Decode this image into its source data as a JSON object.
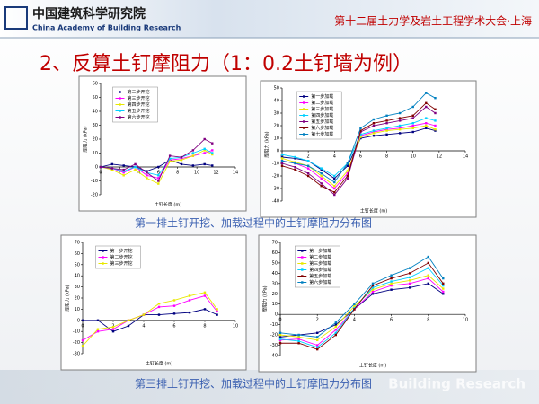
{
  "header": {
    "org_cn": "中国建筑科学研究院",
    "org_en": "China Academy of Building Research",
    "conference": "第十二届土力学及岩土工程学术大会·上海"
  },
  "title": "2、反算土钉摩阻力（1：0.2土钉墙为例）",
  "captions": [
    "第一排土钉开挖、加载过程中的土钉摩阻力分布图",
    "第三排土钉开挖、加载过程中的土钉摩阻力分布图"
  ],
  "watermark": "Building Research",
  "chart_data": [
    {
      "type": "line",
      "y_label": "摩阻力 (kPa)",
      "x_label": "土钉长度 (m)",
      "legend": "upper left",
      "x": [
        0,
        1.2,
        2.4,
        3.6,
        4.8,
        6,
        7.2,
        8.4,
        9.6,
        10.8,
        11.6
      ],
      "series": [
        {
          "name": "第二步开挖",
          "color": "#000080",
          "values": [
            0,
            2,
            1,
            0,
            -3,
            0,
            5,
            2,
            1,
            2,
            1
          ]
        },
        {
          "name": "第三步开挖",
          "color": "#ff00ff",
          "values": [
            0,
            -1,
            -4,
            0,
            -6,
            -8,
            5,
            6,
            8,
            10,
            12
          ]
        },
        {
          "name": "第四步开挖",
          "color": "#e8e800",
          "values": [
            0,
            -2,
            -6,
            -2,
            -8,
            -12,
            4,
            5,
            8,
            12,
            9
          ]
        },
        {
          "name": "第五步开挖",
          "color": "#00d0ff",
          "values": [
            0,
            -1,
            -3,
            0,
            -4,
            -6,
            6,
            7,
            10,
            13,
            10
          ]
        },
        {
          "name": "第六步开挖",
          "color": "#800080",
          "values": [
            0,
            -1,
            -2,
            2,
            -4,
            -10,
            8,
            7,
            12,
            20,
            17
          ]
        }
      ],
      "xlim": [
        0,
        14
      ],
      "xticks": [
        0,
        2,
        4,
        6,
        8,
        10,
        12,
        14
      ],
      "ylim": [
        -20,
        60
      ],
      "yticks": [
        -20,
        -10,
        0,
        10,
        20,
        30,
        40,
        50,
        60
      ]
    },
    {
      "type": "line",
      "y_label": "摩阻力 (kPa)",
      "x_label": "土钉长度 (m)",
      "legend": "upper left",
      "x": [
        0,
        1,
        2,
        3,
        4,
        5,
        6,
        7,
        8,
        9,
        10,
        11,
        11.7
      ],
      "series": [
        {
          "name": "第一步加载",
          "color": "#000080",
          "values": [
            -5,
            -6,
            -8,
            -15,
            -22,
            -12,
            10,
            12,
            13,
            14,
            15,
            18,
            16
          ]
        },
        {
          "name": "第二步加载",
          "color": "#ff00ff",
          "values": [
            -8,
            -10,
            -14,
            -22,
            -30,
            -18,
            12,
            15,
            17,
            18,
            20,
            22,
            20
          ]
        },
        {
          "name": "第三步加载",
          "color": "#e8e800",
          "values": [
            -6,
            -9,
            -12,
            -20,
            -28,
            -16,
            11,
            14,
            16,
            17,
            18,
            20,
            17
          ]
        },
        {
          "name": "第四步加载",
          "color": "#00d0ff",
          "values": [
            -3,
            -5,
            -8,
            -14,
            -20,
            -10,
            13,
            16,
            18,
            20,
            22,
            26,
            24
          ]
        },
        {
          "name": "第五步加载",
          "color": "#800080",
          "values": [
            -10,
            -13,
            -18,
            -26,
            -35,
            -22,
            15,
            20,
            22,
            24,
            26,
            35,
            30
          ]
        },
        {
          "name": "第六步加载",
          "color": "#800000",
          "values": [
            -12,
            -15,
            -20,
            -28,
            -33,
            -20,
            16,
            22,
            24,
            26,
            28,
            38,
            33
          ]
        },
        {
          "name": "第七步加载",
          "color": "#0080c0",
          "values": [
            -8,
            -10,
            -12,
            -18,
            -25,
            -10,
            18,
            25,
            28,
            30,
            35,
            46,
            42
          ]
        }
      ],
      "xlim": [
        0,
        14
      ],
      "xticks": [
        0,
        2,
        4,
        6,
        8,
        10,
        12,
        14
      ],
      "ylim": [
        -40,
        50
      ],
      "yticks": [
        -40,
        -30,
        -20,
        -10,
        0,
        10,
        20,
        30,
        40,
        50
      ]
    },
    {
      "type": "line",
      "y_label": "摩阻力 (kPa)",
      "x_label": "土钉长度 (m)",
      "legend": "upper left",
      "x": [
        0,
        1,
        2,
        3,
        4,
        5,
        6,
        7,
        8,
        8.8
      ],
      "series": [
        {
          "name": "第一步开挖",
          "color": "#000080",
          "values": [
            0,
            0,
            -10,
            -5,
            5,
            5,
            6,
            7,
            10,
            5
          ]
        },
        {
          "name": "第二步开挖",
          "color": "#ff00ff",
          "values": [
            -18,
            -10,
            -8,
            0,
            5,
            12,
            13,
            18,
            22,
            8
          ]
        },
        {
          "name": "第三步开挖",
          "color": "#e8e800",
          "values": [
            -23,
            -8,
            -6,
            0,
            5,
            15,
            18,
            22,
            25,
            10
          ]
        }
      ],
      "xlim": [
        0,
        10
      ],
      "xticks": [
        0,
        2,
        4,
        6,
        8,
        10
      ],
      "ylim": [
        -30,
        70
      ],
      "yticks": [
        -30,
        -20,
        -10,
        0,
        10,
        20,
        30,
        40,
        50,
        60,
        70
      ]
    },
    {
      "type": "line",
      "y_label": "摩阻力 (kPa)",
      "x_label": "土钉长度 (m)",
      "legend": "upper left",
      "x": [
        0,
        1,
        2,
        3,
        4,
        5,
        6,
        7,
        8,
        8.8
      ],
      "series": [
        {
          "name": "第一步加载",
          "color": "#000080",
          "values": [
            -22,
            -20,
            -18,
            -10,
            5,
            20,
            24,
            26,
            30,
            20
          ]
        },
        {
          "name": "第二步加载",
          "color": "#ff00ff",
          "values": [
            -25,
            -24,
            -30,
            -15,
            5,
            22,
            28,
            30,
            35,
            22
          ]
        },
        {
          "name": "第三步加载",
          "color": "#e8e800",
          "values": [
            -20,
            -22,
            -25,
            -12,
            8,
            24,
            30,
            33,
            38,
            25
          ]
        },
        {
          "name": "第四步加载",
          "color": "#00d0ff",
          "values": [
            -24,
            -26,
            -32,
            -18,
            6,
            26,
            32,
            36,
            45,
            28
          ]
        },
        {
          "name": "第五步加载",
          "color": "#800000",
          "values": [
            -28,
            -28,
            -34,
            -20,
            5,
            28,
            35,
            40,
            50,
            30
          ]
        },
        {
          "name": "第六步加载",
          "color": "#0080c0",
          "values": [
            -18,
            -20,
            -22,
            -8,
            10,
            30,
            38,
            45,
            56,
            35
          ]
        }
      ],
      "xlim": [
        0,
        10
      ],
      "xticks": [
        0,
        2,
        4,
        6,
        8,
        10
      ],
      "ylim": [
        -40,
        70
      ],
      "yticks": [
        -40,
        -30,
        -20,
        -10,
        0,
        10,
        20,
        30,
        40,
        50,
        60,
        70
      ]
    }
  ]
}
